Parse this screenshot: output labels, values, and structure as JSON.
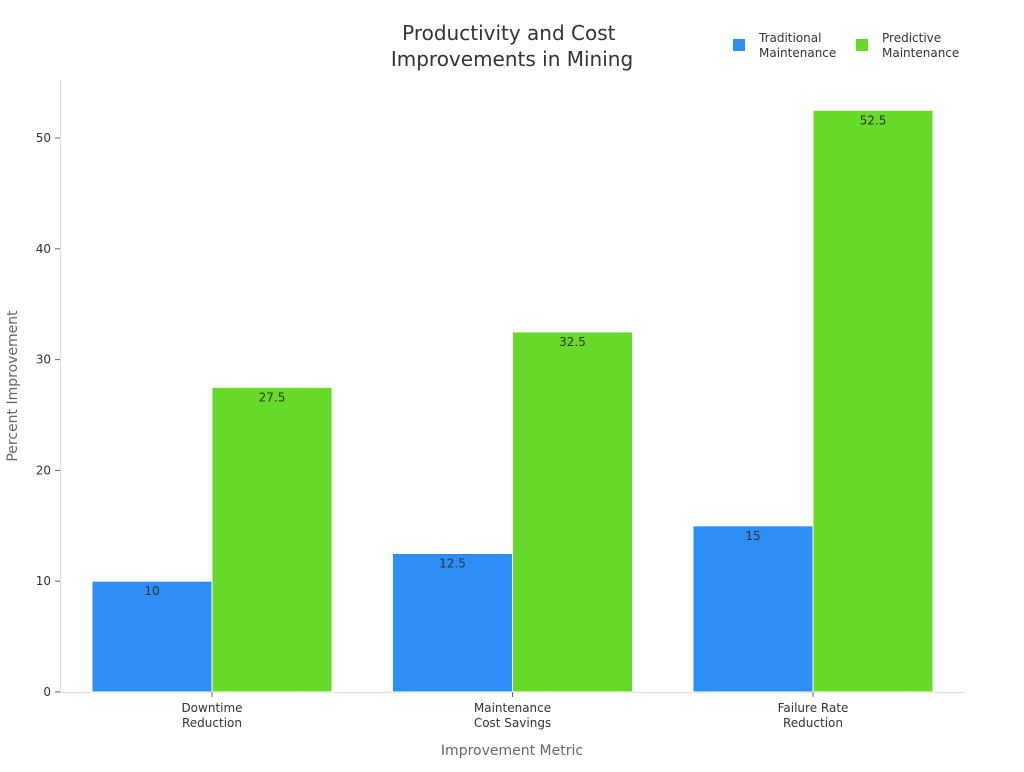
{
  "chart_data": {
    "type": "bar",
    "title_lines": [
      "Productivity and Cost",
      "Improvements in Mining"
    ],
    "xlabel": "Improvement Metric",
    "ylabel": "Percent Improvement",
    "categories": [
      [
        "Downtime",
        "Reduction"
      ],
      [
        "Maintenance",
        "Cost Savings"
      ],
      [
        "Failure Rate",
        "Reduction"
      ]
    ],
    "series": [
      {
        "name_lines": [
          "Traditional",
          "Maintenance"
        ],
        "color": "#2d8ef6",
        "values": [
          10,
          12.5,
          15
        ],
        "labels": [
          "10",
          "12.5",
          "15"
        ]
      },
      {
        "name_lines": [
          "Predictive",
          "Maintenance"
        ],
        "color": "#67d929",
        "values": [
          27.5,
          32.5,
          52.5
        ],
        "labels": [
          "27.5",
          "32.5",
          "52.5"
        ]
      }
    ],
    "ylim": [
      0,
      55
    ],
    "yticks": [
      0,
      10,
      20,
      30,
      40,
      50
    ],
    "ytick_labels": [
      "0",
      "10",
      "20",
      "30",
      "40",
      "50"
    ],
    "grid": false,
    "legend_position": "top-right"
  }
}
